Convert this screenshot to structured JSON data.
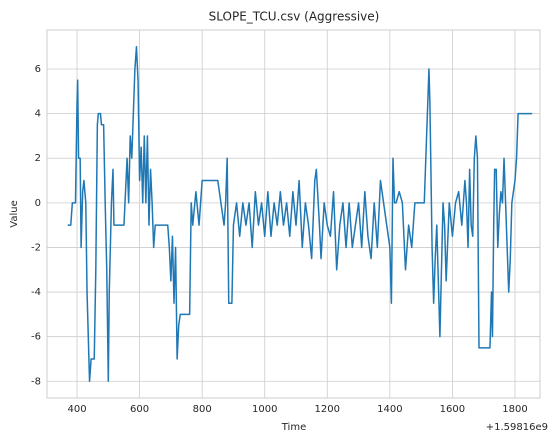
{
  "chart_data": {
    "type": "line",
    "title": "SLOPE_TCU.csv (Aggressive)",
    "x_label": "Time",
    "y_label": "Value",
    "x_offset_label": "+1.59816e9",
    "x": [
      370,
      380,
      385,
      395,
      400,
      402,
      405,
      410,
      413,
      418,
      422,
      428,
      432,
      440,
      445,
      455,
      460,
      465,
      468,
      475,
      478,
      485,
      490,
      495,
      500,
      503,
      510,
      515,
      518,
      530,
      540,
      550,
      555,
      560,
      565,
      570,
      575,
      580,
      585,
      590,
      595,
      600,
      605,
      610,
      615,
      620,
      625,
      630,
      635,
      640,
      645,
      650,
      670,
      690,
      695,
      700,
      705,
      710,
      715,
      720,
      725,
      730,
      760,
      765,
      770,
      780,
      790,
      800,
      850,
      860,
      870,
      875,
      880,
      885,
      895,
      900,
      910,
      920,
      930,
      940,
      950,
      960,
      970,
      980,
      990,
      1000,
      1010,
      1020,
      1030,
      1040,
      1050,
      1060,
      1070,
      1080,
      1090,
      1100,
      1110,
      1120,
      1130,
      1140,
      1150,
      1160,
      1165,
      1175,
      1180,
      1190,
      1200,
      1210,
      1220,
      1230,
      1240,
      1250,
      1260,
      1270,
      1280,
      1290,
      1300,
      1310,
      1320,
      1330,
      1340,
      1350,
      1360,
      1370,
      1380,
      1390,
      1400,
      1405,
      1410,
      1415,
      1420,
      1430,
      1440,
      1450,
      1460,
      1470,
      1480,
      1490,
      1500,
      1510,
      1515,
      1520,
      1525,
      1528,
      1535,
      1540,
      1545,
      1550,
      1555,
      1560,
      1565,
      1570,
      1575,
      1580,
      1590,
      1600,
      1610,
      1620,
      1630,
      1640,
      1645,
      1650,
      1655,
      1660,
      1665,
      1670,
      1675,
      1680,
      1685,
      1720,
      1725,
      1728,
      1732,
      1735,
      1740,
      1745,
      1750,
      1755,
      1760,
      1765,
      1770,
      1775,
      1780,
      1785,
      1790,
      1800,
      1805,
      1810,
      1855
    ],
    "series": [
      {
        "color": "#1f77b4",
        "values": [
          -1,
          -1,
          0,
          0,
          4.5,
          5.5,
          2,
          2,
          -2,
          0.5,
          1,
          0,
          -4,
          -8,
          -7,
          -7,
          -3,
          3.5,
          4,
          4,
          3.5,
          3.5,
          0,
          -3,
          -8,
          -4,
          0,
          1.5,
          -1,
          -1,
          -1,
          -1,
          0.5,
          2,
          0,
          3,
          2,
          4,
          6,
          7,
          5.5,
          1,
          2.5,
          0,
          3,
          0,
          3,
          -1,
          1.5,
          0,
          -2,
          -1,
          -1,
          -1,
          -2,
          -3.5,
          -1.5,
          -4.5,
          -2,
          -7,
          -5.5,
          -5,
          -5,
          0,
          -1,
          0.5,
          -1,
          1,
          1,
          0,
          -1,
          0,
          2,
          -4.5,
          -4.5,
          -1,
          0,
          -1.5,
          0,
          -1,
          0,
          -2,
          0.5,
          -1,
          0,
          -1.5,
          0.5,
          -1.5,
          0,
          -1,
          0.5,
          -1,
          0,
          -1.5,
          0.5,
          -1,
          1,
          -2,
          0,
          -1,
          -2.5,
          1,
          1.5,
          -1,
          -2.5,
          0,
          -1,
          -1.5,
          0.5,
          -3,
          -1,
          0,
          -2,
          0,
          -2,
          -1,
          0,
          -2,
          0.5,
          -1.5,
          -2.5,
          0,
          -2,
          1,
          0,
          -1,
          -2,
          -4.5,
          2,
          0,
          0,
          0.5,
          0,
          -3,
          -1,
          -2,
          0,
          0,
          0,
          0,
          2,
          4,
          6,
          4.5,
          -2,
          -4.5,
          -2.5,
          -1,
          -3.5,
          -6,
          -3,
          0,
          -1,
          -3.5,
          0,
          -1.5,
          0,
          0.5,
          -1,
          1,
          0,
          -2,
          1.5,
          -1,
          -1.5,
          2,
          3,
          2,
          -6.5,
          -6.5,
          -4,
          -6,
          -1,
          1.5,
          1.5,
          -2,
          -0.5,
          0.5,
          0,
          2,
          0,
          -2,
          -4,
          -2.5,
          0,
          1,
          2,
          4,
          4
        ]
      }
    ],
    "xlim": [
      304,
      1880
    ],
    "xticks": [
      400,
      600,
      800,
      1000,
      1200,
      1400,
      1600,
      1800
    ],
    "ylim": [
      -8.75,
      7.75
    ],
    "yticks": [
      -8,
      -6,
      -4,
      -2,
      0,
      2,
      4,
      6
    ],
    "grid": true
  }
}
